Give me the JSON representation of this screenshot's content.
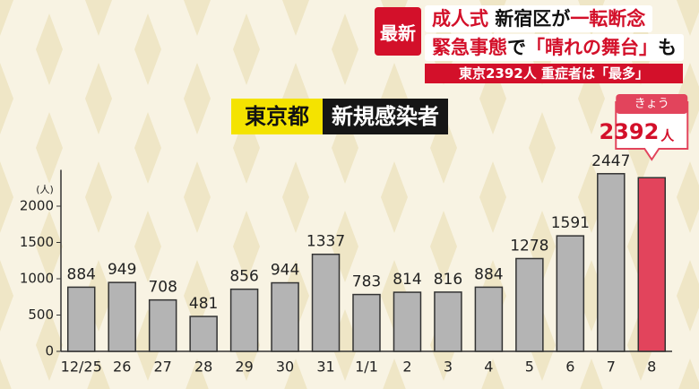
{
  "headline": {
    "badge": "最新",
    "line1": [
      {
        "text": "成人式",
        "color": "#d3102a"
      },
      {
        "text": " 新宿区が",
        "color": "#111111"
      },
      {
        "text": "一転断念",
        "color": "#d3102a"
      }
    ],
    "line2": [
      {
        "text": "緊急事態",
        "color": "#d3102a"
      },
      {
        "text": "で",
        "color": "#111111"
      },
      {
        "text": "「晴れの舞台」",
        "color": "#d3102a"
      },
      {
        "text": "も",
        "color": "#111111"
      }
    ],
    "strip": "東京2392人 重症者は「最多」"
  },
  "chart_data": {
    "type": "bar",
    "title_region": "東京都",
    "title": "新規感染者",
    "y_unit": "(人)",
    "callout_label": "きょう",
    "callout_unit": "人",
    "categories": [
      "12/25",
      "26",
      "27",
      "28",
      "29",
      "30",
      "31",
      "1/1",
      "2",
      "3",
      "4",
      "5",
      "6",
      "7",
      "8"
    ],
    "values": [
      884,
      949,
      708,
      481,
      856,
      944,
      1337,
      783,
      814,
      816,
      884,
      1278,
      1591,
      2447,
      2392
    ],
    "bar_colors": [
      "#b4b4b4",
      "#b4b4b4",
      "#b4b4b4",
      "#b4b4b4",
      "#b4b4b4",
      "#b4b4b4",
      "#b4b4b4",
      "#b4b4b4",
      "#b4b4b4",
      "#b4b4b4",
      "#b4b4b4",
      "#b4b4b4",
      "#b4b4b4",
      "#b4b4b4",
      "#e2445c"
    ],
    "ylim": [
      0,
      2500
    ],
    "yticks": [
      0,
      500,
      1000,
      1500,
      2000
    ]
  }
}
